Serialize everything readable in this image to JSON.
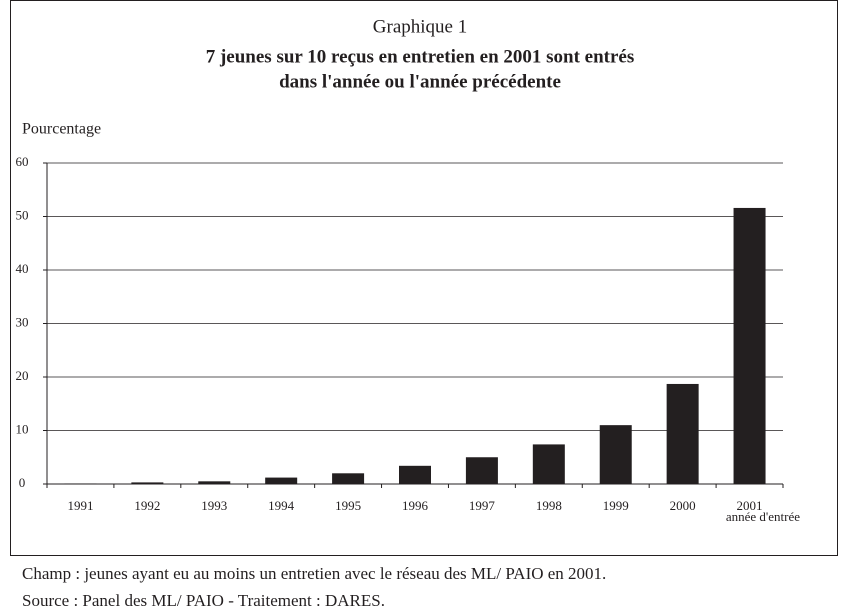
{
  "chart_data": {
    "type": "bar",
    "label": "Graphique 1",
    "title": "7 jeunes sur 10 reçus en entretien en 2001 sont entrés",
    "title_line2": "dans l'année ou l'année précédente",
    "y_label": "Pourcentage",
    "x_label": "année d'entrée",
    "categories": [
      "1991",
      "1992",
      "1993",
      "1994",
      "1995",
      "1996",
      "1997",
      "1998",
      "1999",
      "2000",
      "2001"
    ],
    "values": [
      0.1,
      0.3,
      0.5,
      1.2,
      2.0,
      3.4,
      5.0,
      7.4,
      11.0,
      18.7,
      51.6
    ],
    "color": "#231f20",
    "ylim": [
      0,
      60
    ],
    "yticks": [
      0,
      10,
      20,
      30,
      40,
      50,
      60
    ],
    "grid": true,
    "notes": [
      "Champ : jeunes ayant eu au moins un entretien avec le réseau des ML/ PAIO en 2001.",
      "Source : Panel des ML/ PAIO - Traitement : DARES."
    ]
  }
}
